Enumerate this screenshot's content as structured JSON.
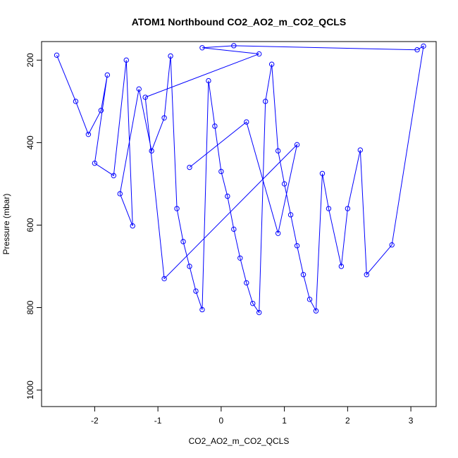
{
  "chart_data": {
    "type": "scatter",
    "title": "ATOM1 Northbound CO2_AO2_m_CO2_QCLS",
    "xlabel": "CO2_AO2_m_CO2_QCLS",
    "ylabel": "Pressure (mbar)",
    "xlim": [
      -2.84,
      3.4
    ],
    "ylim": [
      1040,
      155
    ],
    "y_reversed": true,
    "x_ticks": [
      -2,
      -1,
      0,
      1,
      2,
      3
    ],
    "y_ticks": [
      200,
      400,
      600,
      800,
      1000
    ],
    "x_tick_labels": [
      "-2",
      "-1",
      "0",
      "1",
      "2",
      "3"
    ],
    "y_tick_labels": [
      "200",
      "400",
      "600",
      "800",
      "1000"
    ],
    "grid": false,
    "legend": "none",
    "series_color": "#0000ff",
    "marker": "open-circle",
    "connected": true,
    "series": [
      {
        "points": [
          [
            -2.6,
            188
          ],
          [
            -2.3,
            300
          ],
          [
            -2.1,
            380
          ],
          [
            -1.9,
            322
          ],
          [
            -1.8,
            236
          ],
          [
            -2.0,
            450
          ],
          [
            -1.7,
            480
          ],
          [
            -1.5,
            200
          ],
          [
            -1.4,
            602
          ],
          [
            -1.6,
            524
          ],
          [
            -1.3,
            270
          ],
          [
            -1.1,
            420
          ],
          [
            -0.9,
            340
          ],
          [
            -0.8,
            190
          ],
          [
            -0.7,
            560
          ],
          [
            -0.6,
            640
          ],
          [
            -0.5,
            700
          ],
          [
            -0.4,
            760
          ],
          [
            -0.3,
            805
          ],
          [
            -0.2,
            250
          ],
          [
            -0.1,
            360
          ],
          [
            0.0,
            470
          ],
          [
            0.1,
            530
          ],
          [
            0.2,
            610
          ],
          [
            0.3,
            680
          ],
          [
            0.4,
            740
          ],
          [
            0.5,
            790
          ],
          [
            0.6,
            812
          ],
          [
            0.7,
            300
          ],
          [
            0.8,
            210
          ],
          [
            0.9,
            420
          ],
          [
            1.0,
            500
          ],
          [
            1.1,
            575
          ],
          [
            1.2,
            650
          ],
          [
            1.3,
            720
          ],
          [
            1.4,
            780
          ],
          [
            1.5,
            808
          ],
          [
            1.6,
            475
          ],
          [
            1.7,
            560
          ],
          [
            1.9,
            700
          ],
          [
            2.0,
            560
          ],
          [
            2.2,
            418
          ],
          [
            2.3,
            720
          ],
          [
            2.7,
            648
          ],
          [
            3.2,
            166
          ],
          [
            3.1,
            175
          ],
          [
            0.2,
            165
          ],
          [
            -0.3,
            170
          ],
          [
            0.6,
            185
          ],
          [
            -1.2,
            290
          ],
          [
            -0.9,
            730
          ],
          [
            1.2,
            405
          ],
          [
            0.9,
            620
          ],
          [
            0.4,
            350
          ],
          [
            -0.5,
            460
          ]
        ]
      }
    ]
  }
}
